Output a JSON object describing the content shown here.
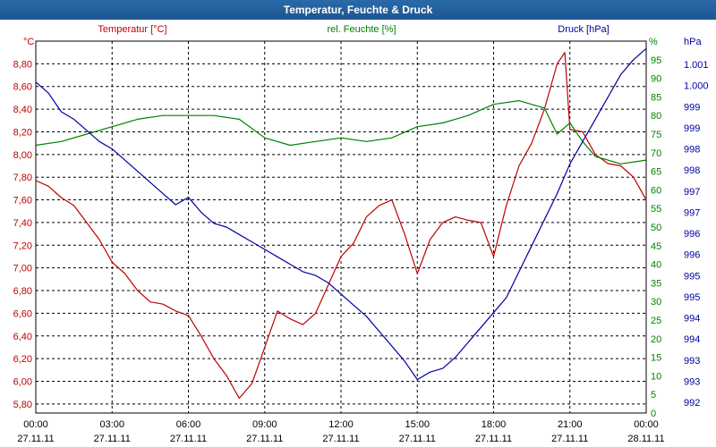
{
  "window": {
    "title": "Temperatur, Feuchte & Druck"
  },
  "chart_data": {
    "type": "line",
    "title": "Temperatur, Feuchte & Druck",
    "x_ticks": [
      {
        "time": "00:00",
        "date": "27.11.11"
      },
      {
        "time": "03:00",
        "date": "27.11.11"
      },
      {
        "time": "06:00",
        "date": "27.11.11"
      },
      {
        "time": "09:00",
        "date": "27.11.11"
      },
      {
        "time": "12:00",
        "date": "27.11.11"
      },
      {
        "time": "15:00",
        "date": "27.11.11"
      },
      {
        "time": "18:00",
        "date": "27.11.11"
      },
      {
        "time": "21:00",
        "date": "27.11.11"
      },
      {
        "time": "00:00",
        "date": "28.11.11"
      }
    ],
    "xlim_hours": [
      0,
      24
    ],
    "grid": true,
    "axes": {
      "temp": {
        "label": "Temperatur [°C]",
        "unit": "°C",
        "ylim": [
          5.72,
          9.0
        ],
        "ticks": [
          "8,80",
          "8,60",
          "8,40",
          "8,20",
          "8,00",
          "7,80",
          "7,60",
          "7,40",
          "7,20",
          "7,00",
          "6,80",
          "6,60",
          "6,40",
          "6,20",
          "6,00",
          "5,80"
        ],
        "color": "#c00000"
      },
      "hum": {
        "label": "rel. Feuchte [%]",
        "unit": "%",
        "ylim": [
          0,
          100
        ],
        "ticks": [
          "95",
          "90",
          "85",
          "80",
          "75",
          "70",
          "65",
          "60",
          "55",
          "50",
          "45",
          "40",
          "35",
          "30",
          "25",
          "20",
          "15",
          "10",
          "5",
          "0"
        ],
        "color": "#008000"
      },
      "press": {
        "label": "Druck [hPa]",
        "unit": "hPa",
        "ylim": [
          991.5,
          1001.5
        ],
        "ticks": [
          "1.001",
          "1.000",
          "999",
          "999",
          "998",
          "998",
          "997",
          "997",
          "996",
          "996",
          "995",
          "995",
          "994",
          "994",
          "993",
          "993",
          "992"
        ],
        "color": "#0000a0"
      }
    },
    "series": [
      {
        "name": "Temperatur [°C]",
        "axis": "temp",
        "color": "#c00000",
        "x": [
          0,
          0.5,
          1,
          1.5,
          2,
          2.5,
          3,
          3.5,
          4,
          4.5,
          5,
          5.5,
          6,
          6.5,
          7,
          7.5,
          8,
          8.5,
          9,
          9.5,
          10,
          10.5,
          11,
          11.5,
          12,
          12.5,
          13,
          13.5,
          14,
          14.5,
          15,
          15.5,
          16,
          16.5,
          17,
          17.5,
          18,
          18.5,
          19,
          19.5,
          20,
          20.5,
          20.8,
          21,
          21.5,
          22,
          22.5,
          23,
          23.5,
          24
        ],
        "values": [
          7.77,
          7.72,
          7.62,
          7.55,
          7.4,
          7.25,
          7.05,
          6.95,
          6.8,
          6.7,
          6.68,
          6.62,
          6.58,
          6.4,
          6.2,
          6.05,
          5.85,
          5.98,
          6.3,
          6.62,
          6.55,
          6.5,
          6.6,
          6.85,
          7.1,
          7.22,
          7.45,
          7.55,
          7.6,
          7.3,
          6.95,
          7.25,
          7.4,
          7.45,
          7.42,
          7.4,
          7.1,
          7.55,
          7.9,
          8.1,
          8.4,
          8.8,
          8.9,
          8.22,
          8.2,
          8.0,
          7.92,
          7.9,
          7.8,
          7.6
        ]
      },
      {
        "name": "rel. Feuchte [%]",
        "axis": "hum",
        "color": "#008000",
        "x": [
          0,
          1,
          2,
          3,
          4,
          5,
          6,
          7,
          8,
          9,
          10,
          11,
          12,
          13,
          14,
          15,
          16,
          17,
          18,
          19,
          20,
          20.5,
          21,
          21.5,
          22,
          23,
          24
        ],
        "values": [
          72,
          73,
          75,
          77,
          79,
          80,
          80,
          80,
          79,
          74,
          72,
          73,
          74,
          73,
          74,
          77,
          78,
          80,
          83,
          84,
          82,
          75,
          78,
          73,
          69,
          67,
          68
        ]
      },
      {
        "name": "Druck [hPa]",
        "axis": "press",
        "color": "#0000a0",
        "x": [
          0,
          0.5,
          1,
          1.5,
          2,
          2.5,
          3,
          3.5,
          4,
          4.5,
          5,
          5.5,
          6,
          6.5,
          7,
          7.5,
          8,
          8.5,
          9,
          9.5,
          10,
          10.5,
          11,
          11.5,
          12,
          12.5,
          13,
          13.5,
          14,
          14.5,
          15,
          15.5,
          16,
          16.5,
          17,
          17.5,
          18,
          18.5,
          19,
          19.5,
          20,
          20.5,
          21,
          21.5,
          22,
          22.5,
          23,
          23.5,
          24
        ],
        "values": [
          1000.4,
          1000.1,
          999.6,
          999.4,
          999.1,
          998.8,
          998.6,
          998.3,
          998.0,
          997.7,
          997.4,
          997.1,
          997.3,
          996.9,
          996.6,
          996.5,
          996.3,
          996.1,
          995.9,
          995.7,
          995.5,
          995.3,
          995.2,
          995.0,
          994.7,
          994.4,
          994.1,
          993.7,
          993.3,
          992.9,
          992.4,
          992.6,
          992.7,
          993.0,
          993.4,
          993.8,
          994.2,
          994.6,
          995.3,
          996.0,
          996.7,
          997.4,
          998.2,
          998.8,
          999.4,
          1000.0,
          1000.6,
          1001.0,
          1001.3
        ]
      }
    ]
  }
}
